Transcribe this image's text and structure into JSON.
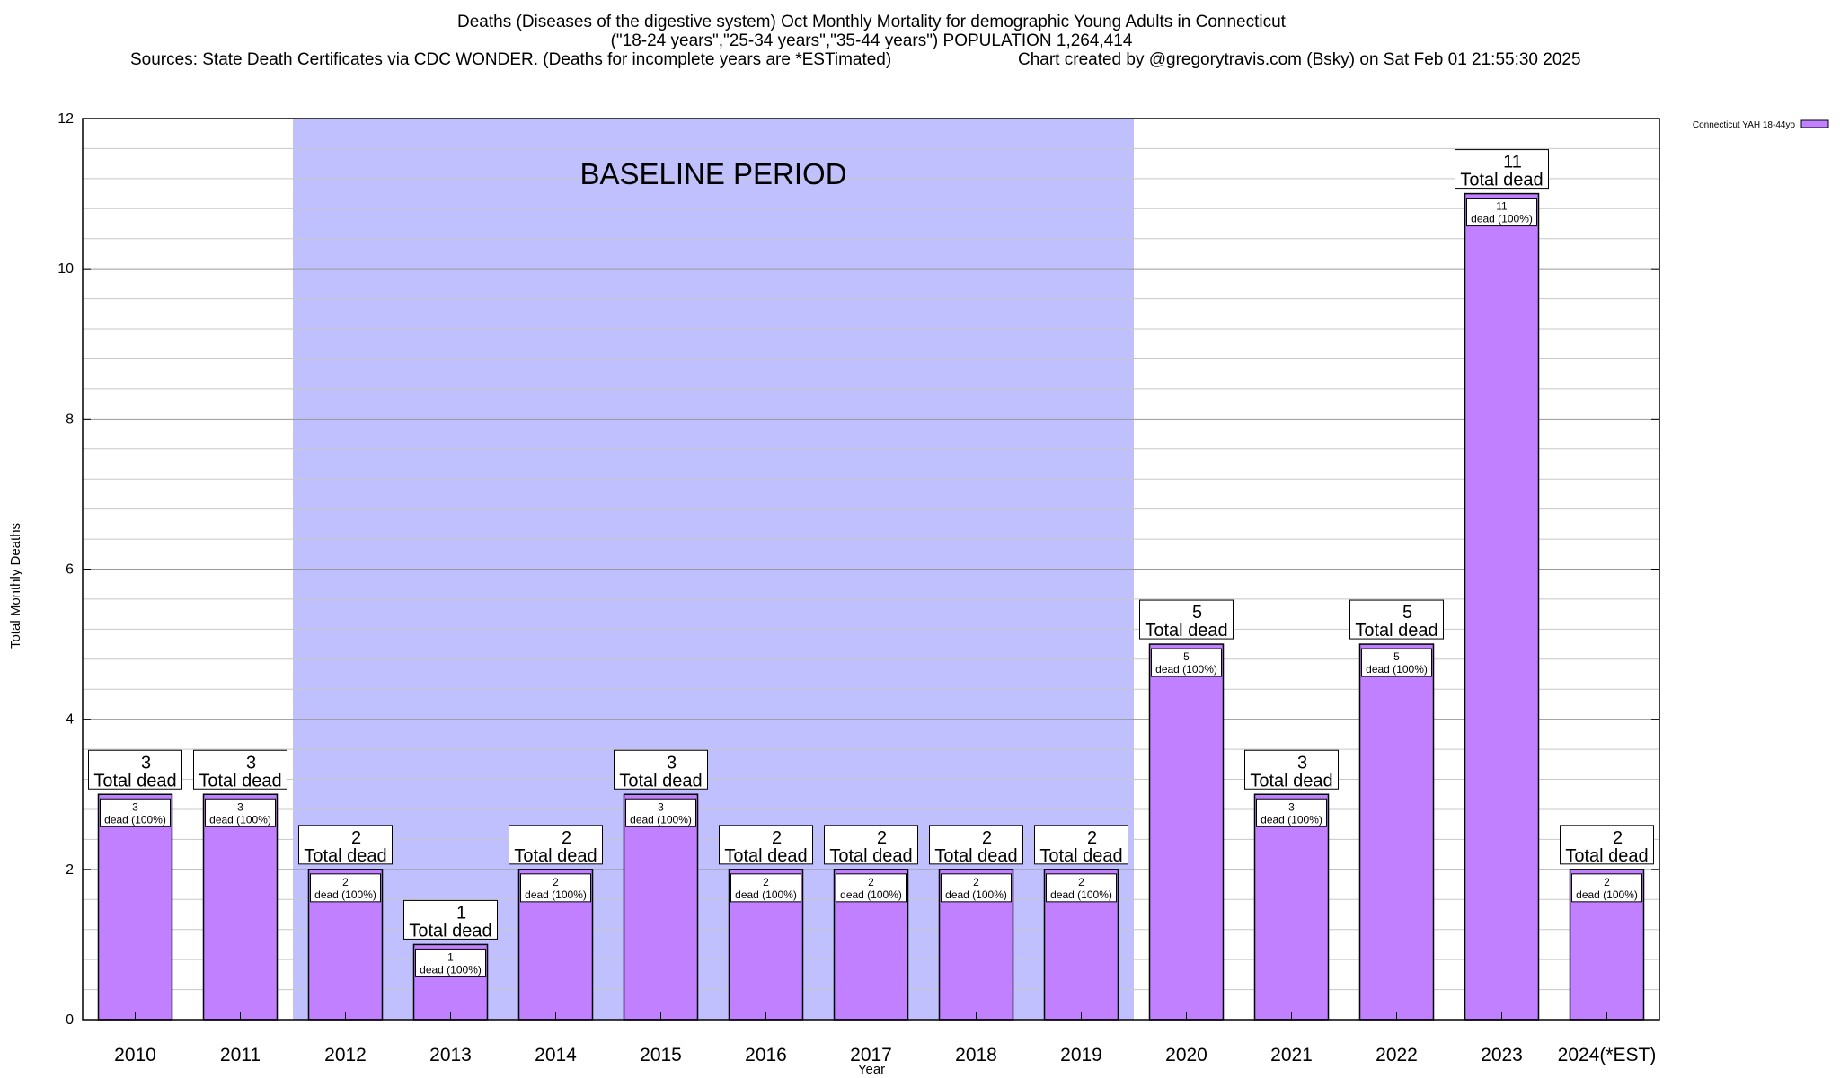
{
  "chart_data": {
    "type": "bar",
    "title_lines": [
      "Deaths (Diseases of the digestive system) Oct Monthly Mortality for demographic Young Adults in Connecticut",
      "(\"18-24 years\",\"25-34 years\",\"35-44 years\") POPULATION 1,264,414"
    ],
    "sources": "Sources: State Death Certificates via CDC WONDER. (Deaths for incomplete years are *ESTimated)",
    "credit": "Chart created by @gregorytravis.com (Bsky) on Sat Feb 01 21:55:30 2025",
    "xlabel": "Year",
    "ylabel": "Total Monthly Deaths",
    "ylim": [
      0,
      12
    ],
    "yticks": [
      0,
      2,
      4,
      6,
      8,
      10,
      12
    ],
    "grid": true,
    "legend": {
      "placement": "top-right",
      "entries": [
        "Connecticut YAH 18-44yo"
      ]
    },
    "colors": {
      "bar": "#c080ff",
      "bar_border": "#000000",
      "baseline_band": "#c0c0ff"
    },
    "categories": [
      "2010",
      "2011",
      "2012",
      "2013",
      "2014",
      "2015",
      "2016",
      "2017",
      "2018",
      "2019",
      "2020",
      "2021",
      "2022",
      "2023",
      "2024(*EST)"
    ],
    "series": [
      {
        "name": "Connecticut YAH 18-44yo",
        "values": [
          3,
          3,
          2,
          1,
          2,
          3,
          2,
          2,
          2,
          2,
          5,
          3,
          5,
          11,
          2
        ]
      }
    ],
    "total_label_suffix": "Total dead",
    "bar_label_suffix": "dead (100%)",
    "baseline_period": {
      "label": "BASELINE PERIOD",
      "from": "2012",
      "to": "2019"
    }
  }
}
